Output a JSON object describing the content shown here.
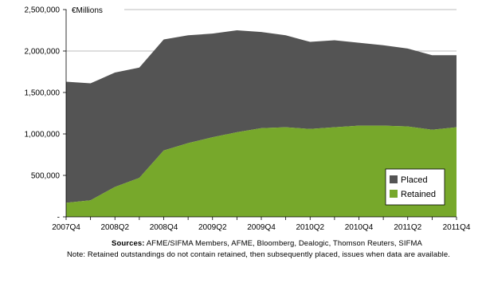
{
  "chart_data": {
    "type": "area",
    "stacked": true,
    "unit_label": "€Millions",
    "x": [
      "2007Q4",
      "2008Q1",
      "2008Q2",
      "2008Q3",
      "2008Q4",
      "2009Q1",
      "2009Q2",
      "2009Q3",
      "2009Q4",
      "2010Q1",
      "2010Q2",
      "2010Q3",
      "2010Q4",
      "2011Q1",
      "2011Q2",
      "2011Q3",
      "2011Q4"
    ],
    "x_tick_labels": [
      "2007Q4",
      "2008Q2",
      "2008Q4",
      "2009Q2",
      "2009Q4",
      "2010Q2",
      "2010Q4",
      "2011Q2",
      "2011Q4"
    ],
    "ylim": [
      0,
      2500000
    ],
    "y_tick_labels": [
      "-",
      "500,000",
      "1,000,000",
      "1,500,000",
      "2,000,000",
      "2,500,000"
    ],
    "grid": true,
    "legend_position": "bottom-right",
    "series": [
      {
        "name": "Retained",
        "color": "#77a82b",
        "values": [
          170000,
          200000,
          360000,
          470000,
          800000,
          890000,
          960000,
          1020000,
          1070000,
          1080000,
          1060000,
          1080000,
          1100000,
          1100000,
          1090000,
          1050000,
          1080000
        ]
      },
      {
        "name": "Placed",
        "color": "#545454",
        "values": [
          1460000,
          1410000,
          1380000,
          1330000,
          1340000,
          1300000,
          1250000,
          1230000,
          1160000,
          1110000,
          1050000,
          1050000,
          1000000,
          970000,
          940000,
          900000,
          870000
        ]
      }
    ]
  },
  "notes": {
    "sources_label": "Sources:",
    "sources_text": "AFME/SIFMA  Members, AFME,  Bloomberg, Dealogic, Thomson Reuters, SIFMA",
    "note_text": "Note: Retained outstandings do not contain retained, then subsequently placed, issues when data are available."
  }
}
